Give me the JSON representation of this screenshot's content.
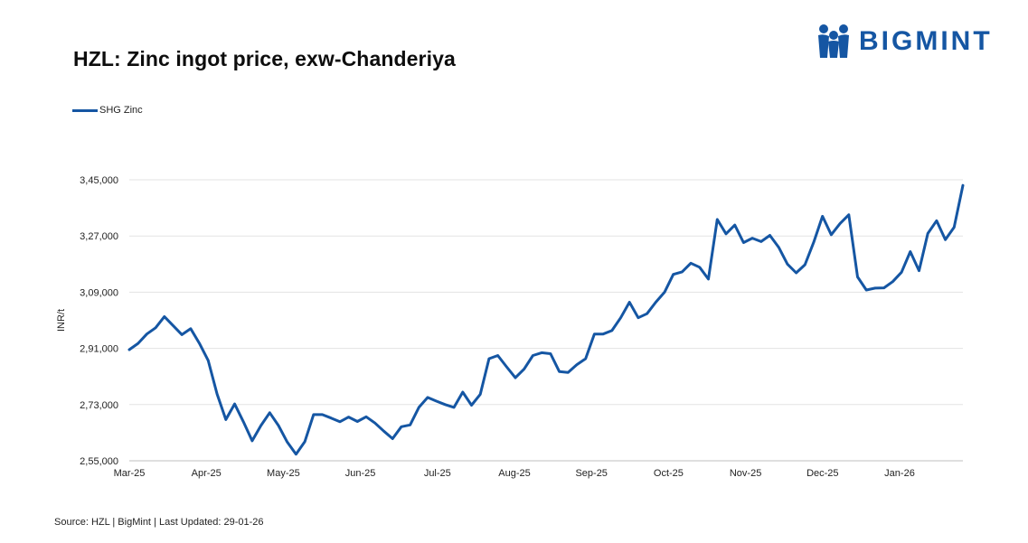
{
  "header": {
    "title": "HZL:  Zinc ingot price, exw-Chanderiya",
    "brand": "BIGMINT",
    "brand_color": "#1556a3"
  },
  "footer": {
    "source": "Source: HZL | BigMint | Last Updated: 29-01-26"
  },
  "chart_data": {
    "type": "line",
    "title": "HZL:  Zinc ingot price, exw-Chanderiya",
    "xlabel": "",
    "ylabel": "INR/t",
    "ylim": [
      255000,
      345000
    ],
    "yticks": [
      255000,
      273000,
      291000,
      309000,
      327000,
      345000
    ],
    "ytick_labels": [
      "2,55,000",
      "2,73,000",
      "2,91,000",
      "3,09,000",
      "3,27,000",
      "3,45,000"
    ],
    "xtick_labels": [
      "Mar-25",
      "Apr-25",
      "May-25",
      "Jun-25",
      "Jul-25",
      "Aug-25",
      "Sep-25",
      "Oct-25",
      "Nov-25",
      "Dec-25",
      "Jan-26"
    ],
    "grid": true,
    "legend_position": "top-left",
    "series": [
      {
        "name": "SHG Zinc",
        "color": "#1556a3",
        "values": [
          290600,
          292600,
          295600,
          297600,
          301200,
          298300,
          295400,
          297300,
          292600,
          287100,
          276400,
          268200,
          273200,
          267500,
          261400,
          266300,
          270400,
          266300,
          261000,
          257100,
          261100,
          269800,
          269800,
          268700,
          267500,
          269000,
          267600,
          269100,
          267100,
          264500,
          262100,
          265900,
          266500,
          272100,
          275300,
          274100,
          273000,
          272100,
          277000,
          272800,
          276300,
          287700,
          288700,
          285100,
          281600,
          284400,
          288700,
          289600,
          289300,
          283600,
          283300,
          285800,
          287700,
          295600,
          295600,
          296700,
          300800,
          305800,
          300800,
          302100,
          305800,
          309000,
          314700,
          315500,
          318300,
          317000,
          313200,
          332300,
          327700,
          330500,
          324900,
          326300,
          325200,
          327200,
          323400,
          318000,
          315200,
          317800,
          325000,
          333300,
          327400,
          331000,
          333800,
          313900,
          309700,
          310300,
          310400,
          312400,
          315400,
          322000,
          315900,
          327800,
          331900,
          325800,
          329800,
          343200
        ]
      }
    ]
  }
}
